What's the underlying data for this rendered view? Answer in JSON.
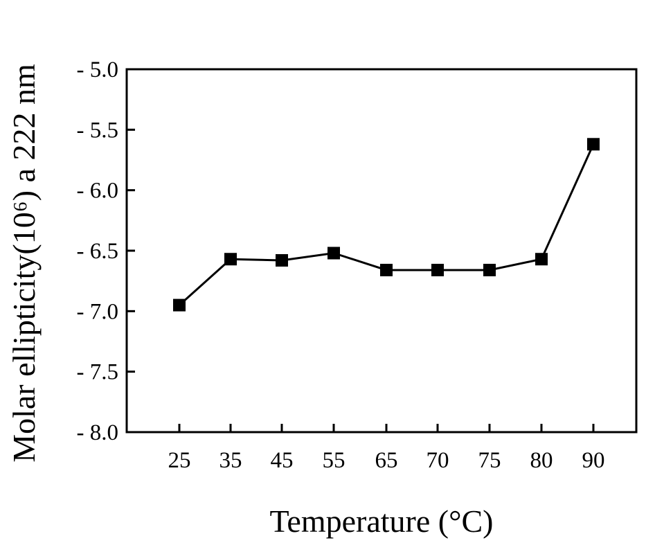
{
  "chart_data": {
    "type": "line",
    "xlabel": "Temperature (°C)",
    "ylabel": "Molar ellipticity(10⁶) a 222 nm",
    "categories": [
      "25",
      "35",
      "45",
      "55",
      "65",
      "70",
      "75",
      "80",
      "90"
    ],
    "series": [
      {
        "values": [
          -6.95,
          -6.57,
          -6.58,
          -6.52,
          -6.66,
          -6.66,
          -6.66,
          -6.57,
          -5.62
        ],
        "marker": "square",
        "color": "#000000"
      }
    ],
    "ylim": [
      -8.0,
      -5.0
    ],
    "yticks": [
      -5.0,
      -5.5,
      -6.0,
      -6.5,
      -7.0,
      -7.5,
      -8.0
    ],
    "ytick_labels": [
      "- 5.0",
      "- 5.5",
      "- 6.0",
      "- 6.5",
      "- 7.0",
      "- 7.5",
      "- 8.0"
    ],
    "grid": false,
    "legend": "none"
  }
}
